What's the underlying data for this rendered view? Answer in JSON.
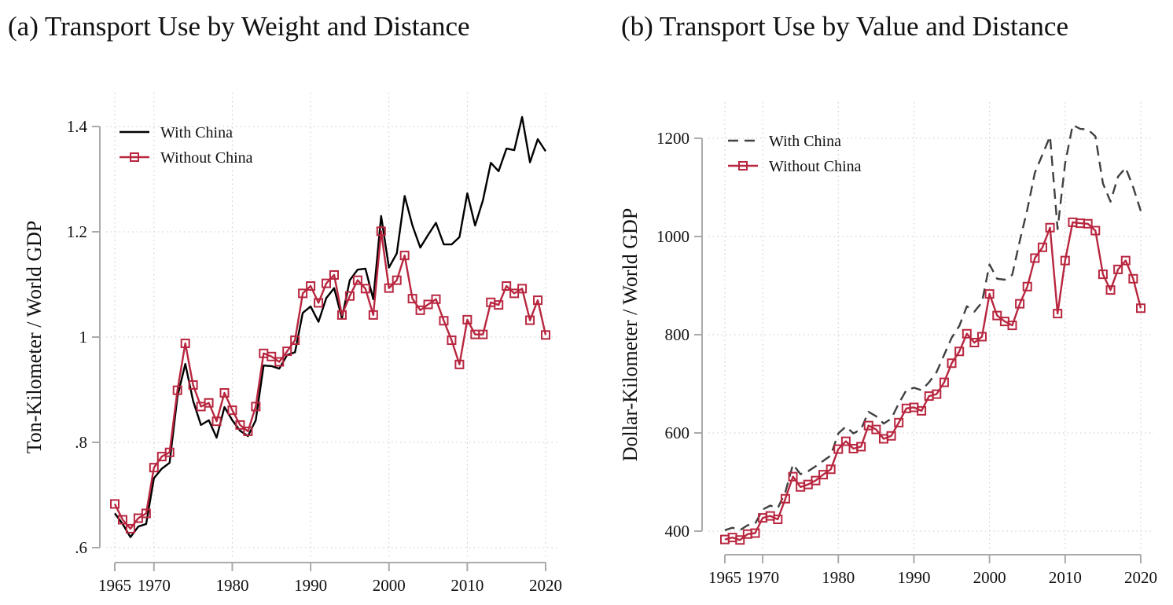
{
  "colors": {
    "with_china_a": "#000000",
    "with_china_b": "#404040",
    "without_china": "#b8263f",
    "axis": "#aaaaaa",
    "grid": "#c8c8c8"
  },
  "chart_data": [
    {
      "id": "a",
      "type": "line",
      "title": "(a) Transport Use by Weight and Distance",
      "xlabel": "",
      "ylabel": "Ton-Kilometer / World GDP",
      "xlim": [
        1965,
        2020
      ],
      "ylim": [
        0.6,
        1.4
      ],
      "xticks": [
        1965,
        1970,
        1980,
        1990,
        2000,
        2010,
        2020
      ],
      "xtick_labels": [
        "1965",
        "1970",
        "1980",
        "1990",
        "2000",
        "2010",
        "2020"
      ],
      "yticks": [
        0.6,
        0.8,
        1.0,
        1.2,
        1.4
      ],
      "ytick_labels": [
        ".6",
        ".8",
        "1",
        "1.2",
        "1.4"
      ],
      "grid": true,
      "legend_position": "top-left",
      "x": [
        1965,
        1966,
        1967,
        1968,
        1969,
        1970,
        1971,
        1972,
        1973,
        1974,
        1975,
        1976,
        1977,
        1978,
        1979,
        1980,
        1981,
        1982,
        1983,
        1984,
        1985,
        1986,
        1987,
        1988,
        1989,
        1990,
        1991,
        1992,
        1993,
        1994,
        1995,
        1996,
        1997,
        1998,
        1999,
        2000,
        2001,
        2002,
        2003,
        2004,
        2005,
        2006,
        2007,
        2008,
        2009,
        2010,
        2011,
        2012,
        2013,
        2014,
        2015,
        2016,
        2017,
        2018,
        2019,
        2020
      ],
      "series": [
        {
          "name": "With China",
          "style": "solid",
          "markers": false,
          "values": [
            0.665,
            0.645,
            0.62,
            0.64,
            0.645,
            0.732,
            0.75,
            0.761,
            0.887,
            0.949,
            0.879,
            0.833,
            0.842,
            0.809,
            0.867,
            0.842,
            0.822,
            0.812,
            0.842,
            0.946,
            0.945,
            0.94,
            0.966,
            0.971,
            1.046,
            1.058,
            1.029,
            1.074,
            1.093,
            1.036,
            1.108,
            1.128,
            1.13,
            1.072,
            1.23,
            1.132,
            1.159,
            1.268,
            1.212,
            1.17,
            1.194,
            1.217,
            1.176,
            1.176,
            1.19,
            1.273,
            1.212,
            1.26,
            1.331,
            1.315,
            1.358,
            1.355,
            1.418,
            1.332,
            1.376,
            1.353
          ]
        },
        {
          "name": "Without China",
          "style": "solid",
          "markers": true,
          "values": [
            0.683,
            0.653,
            0.636,
            0.656,
            0.665,
            0.752,
            0.773,
            0.781,
            0.899,
            0.988,
            0.909,
            0.868,
            0.875,
            0.84,
            0.894,
            0.861,
            0.833,
            0.821,
            0.868,
            0.969,
            0.963,
            0.953,
            0.973,
            0.994,
            1.083,
            1.097,
            1.065,
            1.102,
            1.118,
            1.042,
            1.078,
            1.108,
            1.092,
            1.042,
            1.201,
            1.093,
            1.108,
            1.155,
            1.073,
            1.051,
            1.062,
            1.072,
            1.031,
            0.994,
            0.948,
            1.033,
            1.005,
            1.005,
            1.066,
            1.061,
            1.097,
            1.083,
            1.092,
            1.032,
            1.07,
            1.004
          ]
        }
      ]
    },
    {
      "id": "b",
      "type": "line",
      "title": "(b) Transport Use by Value and Distance",
      "xlabel": "",
      "ylabel": "Dollar-Kilometer / World GDP",
      "xlim": [
        1965,
        2020
      ],
      "ylim": [
        400,
        1200
      ],
      "xticks": [
        1965,
        1970,
        1980,
        1990,
        2000,
        2010,
        2020
      ],
      "xtick_labels": [
        "1965",
        "1970",
        "1980",
        "1990",
        "2000",
        "2010",
        "2020"
      ],
      "yticks": [
        400,
        600,
        800,
        1000,
        1200
      ],
      "ytick_labels": [
        "400",
        "600",
        "800",
        "1000",
        "1200"
      ],
      "grid": true,
      "legend_position": "top-left",
      "x": [
        1965,
        1966,
        1967,
        1968,
        1969,
        1970,
        1971,
        1972,
        1973,
        1974,
        1975,
        1976,
        1977,
        1978,
        1979,
        1980,
        1981,
        1982,
        1983,
        1984,
        1985,
        1986,
        1987,
        1988,
        1989,
        1990,
        1991,
        1992,
        1993,
        1994,
        1995,
        1996,
        1997,
        1998,
        1999,
        2000,
        2001,
        2002,
        2003,
        2004,
        2005,
        2006,
        2007,
        2008,
        2009,
        2010,
        2011,
        2012,
        2013,
        2014,
        2015,
        2016,
        2017,
        2018,
        2019,
        2020
      ],
      "series": [
        {
          "name": "With China",
          "style": "dashed",
          "markers": false,
          "values": [
            402,
            407,
            402,
            412,
            415,
            444,
            452,
            447,
            479,
            536,
            516,
            522,
            532,
            543,
            554,
            599,
            613,
            599,
            607,
            643,
            634,
            619,
            629,
            660,
            687,
            692,
            687,
            703,
            724,
            759,
            794,
            818,
            858,
            847,
            866,
            943,
            914,
            912,
            922,
            991,
            1055,
            1130,
            1167,
            1204,
            1015,
            1149,
            1227,
            1219,
            1218,
            1204,
            1108,
            1071,
            1122,
            1140,
            1100,
            1052
          ]
        },
        {
          "name": "Without China",
          "style": "solid",
          "markers": true,
          "values": [
            383,
            387,
            382,
            394,
            396,
            427,
            431,
            424,
            466,
            511,
            490,
            495,
            503,
            515,
            526,
            567,
            583,
            568,
            572,
            615,
            607,
            588,
            594,
            621,
            650,
            652,
            645,
            675,
            679,
            703,
            742,
            766,
            802,
            784,
            796,
            883,
            839,
            827,
            819,
            863,
            898,
            956,
            978,
            1018,
            843,
            951,
            1029,
            1027,
            1026,
            1012,
            923,
            891,
            933,
            951,
            914,
            854
          ]
        }
      ]
    }
  ]
}
